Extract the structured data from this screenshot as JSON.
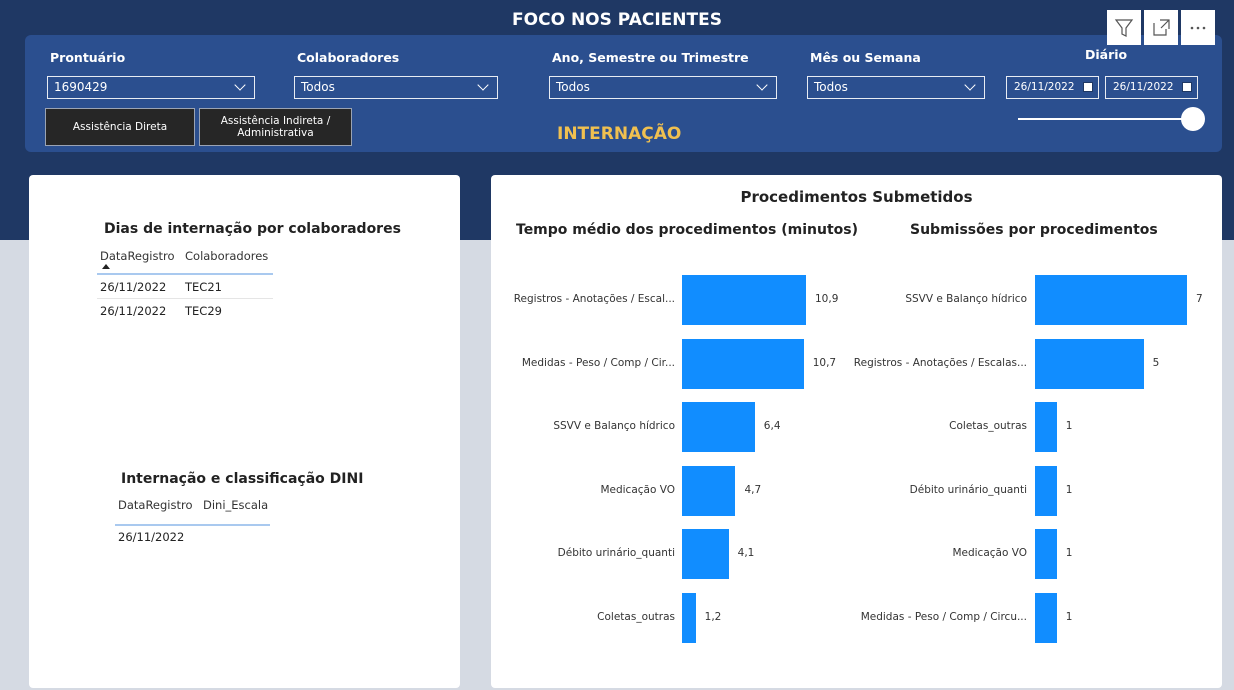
{
  "header": {
    "title": "FOCO NOS PACIENTES",
    "subtitle": "INTERNAÇÃO"
  },
  "filters": [
    {
      "label": "Prontuário",
      "value": "1690429"
    },
    {
      "label": "Colaboradores",
      "value": "Todos"
    },
    {
      "label": "Ano, Semestre ou Trimestre",
      "value": "Todos"
    },
    {
      "label": "Mês ou Semana",
      "value": "Todos"
    }
  ],
  "date_filter": {
    "label": "Diário",
    "start": "26/11/2022",
    "end": "26/11/2022"
  },
  "buttons": [
    "Assistência Direta",
    "Assistência Indireta / Administrativa"
  ],
  "table1": {
    "title": "Dias de internação por colaboradores",
    "columns": [
      "DataRegistro",
      "Colaboradores"
    ],
    "rows": [
      [
        "26/11/2022",
        "TEC21"
      ],
      [
        "26/11/2022",
        "TEC29"
      ]
    ]
  },
  "table2": {
    "title": "Internação e classificação DINI",
    "columns": [
      "DataRegistro",
      "Dini_Escala"
    ],
    "rows": [
      [
        "26/11/2022"
      ]
    ]
  },
  "panel_title": "Procedimentos Submetidos",
  "chart_data": [
    {
      "type": "bar",
      "orientation": "horizontal",
      "title": "Tempo médio dos procedimentos (minutos)",
      "color": "#118dff",
      "categories": [
        "Registros - Anotações / Escal...",
        "Medidas - Peso / Comp / Cir...",
        "SSVV e Balanço hídrico",
        "Medicação VO",
        "Débito urinário_quanti",
        "Coletas_outras"
      ],
      "values": [
        10.9,
        10.7,
        6.4,
        4.7,
        4.1,
        1.2
      ],
      "value_labels": [
        "10,9",
        "10,7",
        "6,4",
        "4,7",
        "4,1",
        "1,2"
      ]
    },
    {
      "type": "bar",
      "orientation": "horizontal",
      "title": "Submissões por procedimentos",
      "color": "#118dff",
      "categories": [
        "SSVV e Balanço hídrico",
        "Registros - Anotações / Escalas...",
        "Coletas_outras",
        "Débito urinário_quanti",
        "Medicação VO",
        "Medidas - Peso / Comp / Circu..."
      ],
      "values": [
        7,
        5,
        1,
        1,
        1,
        1
      ]
    }
  ]
}
